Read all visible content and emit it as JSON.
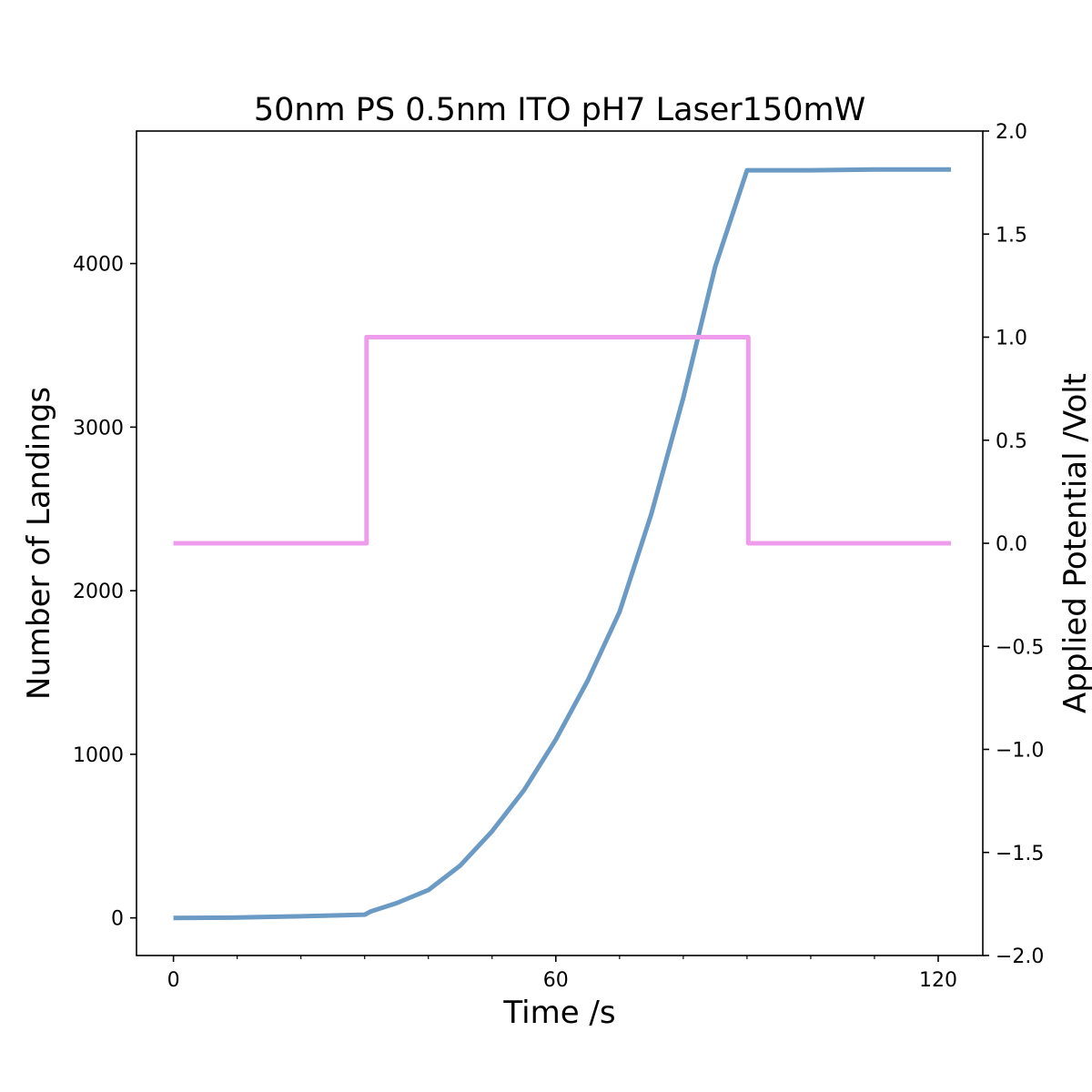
{
  "chart_data": {
    "type": "line",
    "title": "50nm PS 0.5nm ITO pH7 Laser150mW",
    "xlabel": "Time /s",
    "ylabel": "Number of Landings",
    "y2label": "Applied Potential /Volt",
    "xlim": [
      -5.8,
      127
    ],
    "ylim": [
      -230,
      4810
    ],
    "y2lim": [
      -2.0,
      2.0
    ],
    "x_ticks": [
      0,
      60,
      120
    ],
    "x_tick_labels": [
      "0",
      "60",
      "120"
    ],
    "x_minor_ticks": [
      10,
      20,
      30,
      40,
      50,
      70,
      80,
      90,
      100,
      110
    ],
    "y_ticks": [
      0,
      1000,
      2000,
      3000,
      4000
    ],
    "y_tick_labels": [
      "0",
      "1000",
      "2000",
      "3000",
      "4000"
    ],
    "y2_ticks": [
      -2.0,
      -1.5,
      -1.0,
      -0.5,
      0.0,
      0.5,
      1.0,
      1.5,
      2.0
    ],
    "y2_tick_labels": [
      "−2.0",
      "−1.5",
      "−1.0",
      "−0.5",
      "0.0",
      "0.5",
      "1.0",
      "1.5",
      "2.0"
    ],
    "grid": false,
    "series": [
      {
        "axis": "left",
        "color": "#6b9ac4",
        "x": [
          0,
          10,
          20,
          30,
          31,
          35,
          40,
          45,
          50,
          55,
          60,
          65,
          70,
          75,
          80,
          85,
          90,
          95,
          100,
          110,
          122
        ],
        "y": [
          0,
          2,
          10,
          20,
          40,
          90,
          170,
          320,
          530,
          780,
          1090,
          1450,
          1870,
          2470,
          3180,
          3980,
          4570,
          4570,
          4570,
          4575,
          4575
        ]
      },
      {
        "axis": "right",
        "color": "#f09ced",
        "x": [
          0,
          30.3,
          30.3,
          90.2,
          90.2,
          122
        ],
        "y": [
          0.0,
          0.0,
          1.0,
          1.0,
          0.0,
          0.0
        ]
      }
    ]
  }
}
